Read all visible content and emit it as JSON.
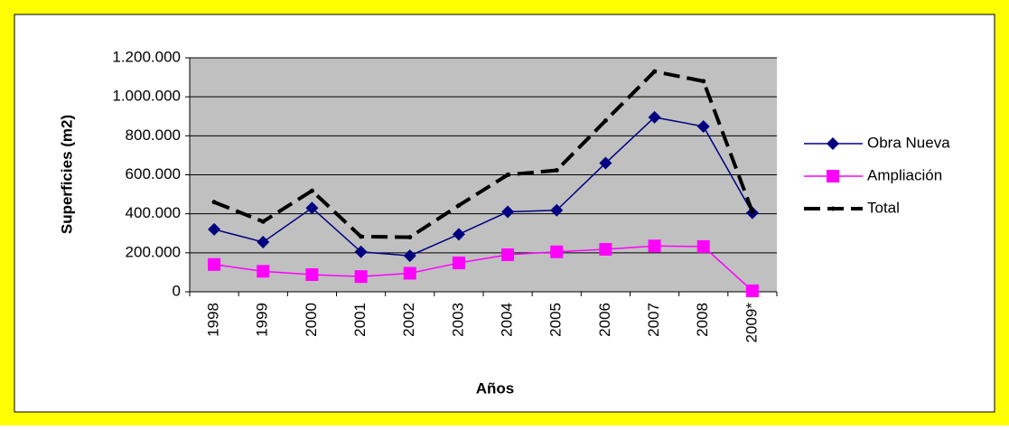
{
  "chart_data": {
    "type": "line",
    "x_label": "Años",
    "y_label": "Superficies (m2)",
    "categories": [
      "1998",
      "1999",
      "2000",
      "2001",
      "2002",
      "2003",
      "2004",
      "2005",
      "2006",
      "2007",
      "2008",
      "2009*"
    ],
    "series": [
      {
        "name": "Obra Nueva",
        "color": "#000080",
        "marker": "diamond",
        "values": [
          320000,
          255000,
          430000,
          205000,
          185000,
          295000,
          410000,
          418000,
          660000,
          895000,
          848000,
          405000
        ]
      },
      {
        "name": "Ampliación",
        "color": "#ff00ff",
        "marker": "square",
        "values": [
          140000,
          105000,
          88000,
          78000,
          95000,
          148000,
          190000,
          205000,
          218000,
          235000,
          232000,
          5000
        ]
      },
      {
        "name": "Total",
        "color": "#000000",
        "marker": "dot",
        "dashed": true,
        "values": [
          460000,
          360000,
          518000,
          283000,
          280000,
          443000,
          600000,
          623000,
          878000,
          1130000,
          1080000,
          410000
        ]
      }
    ],
    "ylim": [
      0,
      1200000
    ],
    "yticks": [
      0,
      {
        "value": 200000,
        "label": "200.000"
      },
      {
        "value": 400000,
        "label": "400.000"
      },
      {
        "value": 600000,
        "label": "600.000"
      },
      {
        "value": 800000,
        "label": "800.000"
      },
      {
        "value": 1000000,
        "label": "1.000.000"
      },
      {
        "value": 1200000,
        "label": "1.200.000"
      }
    ],
    "grid": true,
    "legend": "right"
  }
}
